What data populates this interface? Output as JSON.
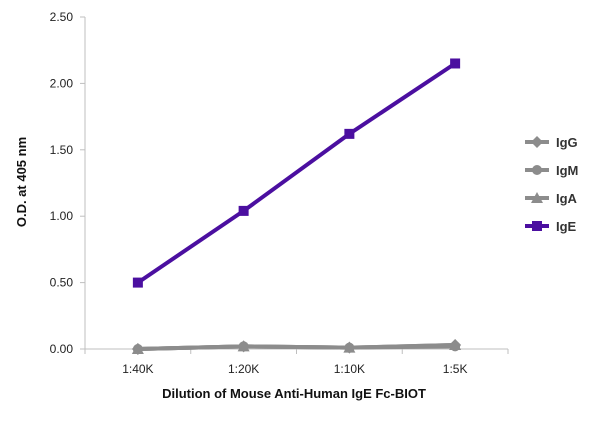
{
  "chart_data": {
    "type": "line",
    "title": "",
    "xlabel": "Dilution of Mouse Anti-Human IgE Fc-BIOT",
    "ylabel": "O.D. at 405 nm",
    "categories": [
      "1:40K",
      "1:20K",
      "1:10K",
      "1:5K"
    ],
    "ylim": [
      0,
      2.5
    ],
    "yticks": [
      "0.00",
      "0.50",
      "1.00",
      "1.50",
      "2.00",
      "2.50"
    ],
    "grid": false,
    "legend_position": "right",
    "series": [
      {
        "name": "IgG",
        "values": [
          0.0,
          0.02,
          0.01,
          0.03
        ],
        "color": "#8c8c8c",
        "marker": "diamond"
      },
      {
        "name": "IgM",
        "values": [
          0.0,
          0.02,
          0.01,
          0.02
        ],
        "color": "#8c8c8c",
        "marker": "circle"
      },
      {
        "name": "IgA",
        "values": [
          0.0,
          0.02,
          0.01,
          0.03
        ],
        "color": "#8c8c8c",
        "marker": "triangle"
      },
      {
        "name": "IgE",
        "values": [
          0.5,
          1.04,
          1.62,
          2.15
        ],
        "color": "#4b0fa0",
        "marker": "square"
      }
    ]
  }
}
